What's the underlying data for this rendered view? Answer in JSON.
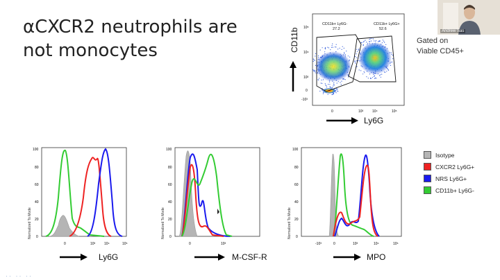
{
  "slide": {
    "title_line1": "αCXCR2 neutrophils are",
    "title_line2": "not monocytes",
    "gated_line1": "Gated on",
    "gated_line2": "Viable CD45+"
  },
  "video": {
    "name": "Andrew Sas"
  },
  "colors": {
    "isotype": "#b5b5b5",
    "cxcr2": "#ee2222",
    "nrs": "#1a1aee",
    "cd11b": "#33cc33"
  },
  "chart_data": [
    {
      "type": "scatter",
      "title": "",
      "xlabel": "Ly6G",
      "ylabel": "CD11b",
      "x_ticks": [
        "0",
        "10³",
        "10⁴",
        "10⁵"
      ],
      "y_ticks": [
        "-10³",
        "0",
        "10³",
        "10⁴",
        "10⁵"
      ],
      "gates": [
        {
          "name": "CD11b+ Ly6G-",
          "value": "27.2"
        },
        {
          "name": "CD11b+ Ly6G+",
          "value": "52.6"
        }
      ]
    },
    {
      "type": "line",
      "xlabel": "Ly6G",
      "ylabel": "Normalized To Mode",
      "y_ticks": [
        "0",
        "20",
        "40",
        "60",
        "80",
        "100"
      ],
      "x_ticks": [
        "0",
        "10³",
        "10⁴",
        "10⁵"
      ]
    },
    {
      "type": "line",
      "xlabel": "M-CSF-R",
      "ylabel": "Normalized To Mode",
      "y_ticks": [
        "0",
        "20",
        "40",
        "60",
        "80",
        "100"
      ],
      "x_ticks": [
        "0",
        "10³"
      ]
    },
    {
      "type": "line",
      "xlabel": "MPO",
      "ylabel": "Normalized To Mode",
      "y_ticks": [
        "0",
        "20",
        "40",
        "60",
        "80",
        "100"
      ],
      "x_ticks": [
        "-10³",
        "0",
        "10³",
        "10⁴",
        "10⁵"
      ]
    }
  ],
  "legend": {
    "items": [
      {
        "label": "Isotype",
        "color": "#b5b5b5"
      },
      {
        "label": "CXCR2 Ly6G+",
        "color": "#ee2222"
      },
      {
        "label": "NRS Ly6G+",
        "color": "#1a1aee"
      },
      {
        "label": "CD11b+ Ly6G-",
        "color": "#33cc33"
      }
    ]
  }
}
